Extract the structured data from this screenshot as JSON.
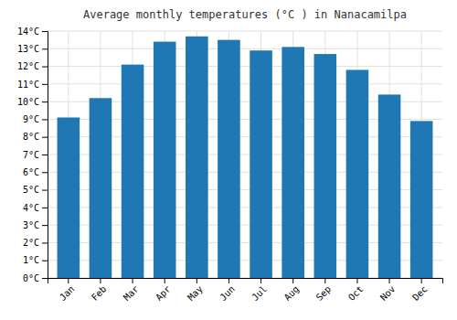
{
  "chart_data": {
    "type": "bar",
    "title": "Average monthly temperatures (°C ) in Nanacamilpa",
    "categories": [
      "Jan",
      "Feb",
      "Mar",
      "Apr",
      "May",
      "Jun",
      "Jul",
      "Aug",
      "Sep",
      "Oct",
      "Nov",
      "Dec"
    ],
    "values": [
      9.1,
      10.2,
      12.1,
      13.4,
      13.7,
      13.5,
      12.9,
      13.1,
      12.7,
      11.8,
      10.4,
      8.9
    ],
    "ylim": [
      0,
      14
    ],
    "yticks": [
      {
        "value": 0,
        "label": "0°C"
      },
      {
        "value": 1,
        "label": "1°C"
      },
      {
        "value": 2,
        "label": "2°C"
      },
      {
        "value": 3,
        "label": "3°C"
      },
      {
        "value": 4,
        "label": "4°C"
      },
      {
        "value": 5,
        "label": "5°C"
      },
      {
        "value": 6,
        "label": "6°C"
      },
      {
        "value": 7,
        "label": "7°C"
      },
      {
        "value": 8,
        "label": "8°C"
      },
      {
        "value": 9,
        "label": "9°C"
      },
      {
        "value": 10,
        "label": "10°C"
      },
      {
        "value": 11,
        "label": "11°C"
      },
      {
        "value": 12,
        "label": "12°C"
      },
      {
        "value": 13,
        "label": "13°C"
      },
      {
        "value": 14,
        "label": "14°C"
      }
    ],
    "grid": true
  }
}
